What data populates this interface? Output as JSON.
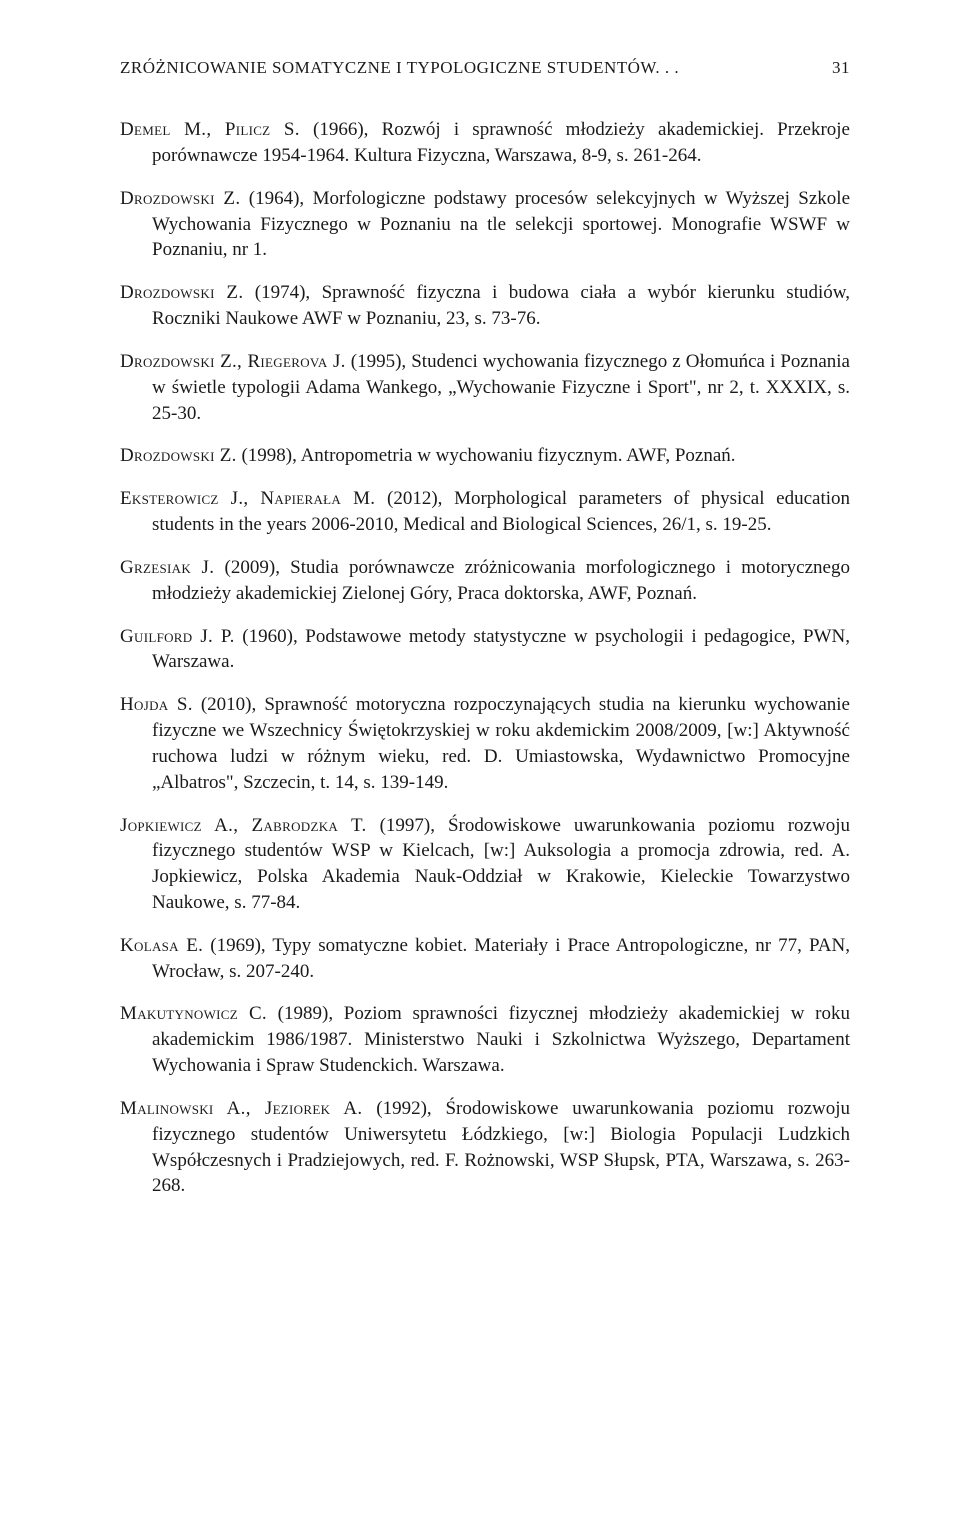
{
  "runningHead": {
    "title": "ZRÓŻNICOWANIE SOMATYCZNE I TYPOLOGICZNE STUDENTÓW. . .",
    "pageNumber": "31"
  },
  "references": [
    {
      "authors": "Demel M., Pilicz S.",
      "body": " (1966), Rozwój i sprawność młodzieży akademickiej. Przekroje porównawcze 1954-1964. Kultura Fizyczna, Warszawa, 8-9, s. 261-264."
    },
    {
      "authors": "Drozdowski Z.",
      "body": " (1964), Morfologiczne podstawy procesów selekcyjnych w Wyższej Szkole Wychowania Fizycznego w Poznaniu na tle selekcji sportowej. Monografie WSWF w Poznaniu, nr 1."
    },
    {
      "authors": "Drozdowski Z.",
      "body": " (1974), Sprawność fizyczna i budowa ciała a wybór kierunku studiów, Roczniki Naukowe AWF w Poznaniu, 23, s. 73-76."
    },
    {
      "authors": "Drozdowski Z., Riegerova J.",
      "body": " (1995), Studenci wychowania fizycznego z Ołomuńca i Poznania w świetle typologii Adama Wankego, „Wychowanie Fizyczne i Sport\", nr 2, t. XXXIX, s. 25-30."
    },
    {
      "authors": "Drozdowski Z.",
      "body": " (1998), Antropometria w wychowaniu fizycznym. AWF, Poznań."
    },
    {
      "authors": "Eksterowicz J., Napierała M.",
      "body": " (2012), Morphological parameters of physical education students in the years 2006-2010, Medical and Biological Sciences, 26/1, s. 19-25."
    },
    {
      "authors": "Grzesiak J.",
      "body": " (2009), Studia porównawcze zróżnicowania morfologicznego i motorycznego młodzieży akademickiej Zielonej Góry, Praca doktorska, AWF, Poznań."
    },
    {
      "authors": "Guilford J. P.",
      "body": " (1960), Podstawowe metody statystyczne w psychologii i pedagogice, PWN, Warszawa."
    },
    {
      "authors": "Hojda S.",
      "body": " (2010), Sprawność motoryczna rozpoczynających studia na kierunku wychowanie fizyczne we Wszechnicy Świętokrzyskiej w roku akdemickim 2008/2009, [w:] Aktywność ruchowa ludzi w różnym wieku, red. D. Umiastowska, Wydawnictwo Promocyjne „Albatros\", Szczecin, t. 14, s. 139-149."
    },
    {
      "authors": "Jopkiewicz A., Zabrodzka T.",
      "body": " (1997), Środowiskowe uwarunkowania poziomu rozwoju fizycznego studentów WSP w Kielcach, [w:] Auksologia a promocja zdrowia, red. A. Jopkiewicz, Polska Akademia Nauk-Oddział w Krakowie, Kieleckie Towarzystwo Naukowe, s. 77-84."
    },
    {
      "authors": "Kolasa E.",
      "body": " (1969), Typy somatyczne kobiet. Materiały i Prace Antropologiczne, nr 77, PAN, Wrocław, s. 207-240."
    },
    {
      "authors": "Makutynowicz C.",
      "body": " (1989), Poziom sprawności fizycznej młodzieży akademickiej w roku akademickim 1986/1987. Ministerstwo Nauki i Szkolnictwa Wyższego, Departament Wychowania i Spraw Studenckich. Warszawa."
    },
    {
      "authors": "Malinowski A., Jeziorek A.",
      "body": " (1992), Środowiskowe uwarunkowania poziomu rozwoju fizycznego studentów Uniwersytetu Łódzkiego, [w:] Biologia Populacji Ludzkich Współczesnych i Pradziejowych, red. F. Rożnowski, WSP Słupsk, PTA, Warszawa, s. 263-268."
    }
  ]
}
